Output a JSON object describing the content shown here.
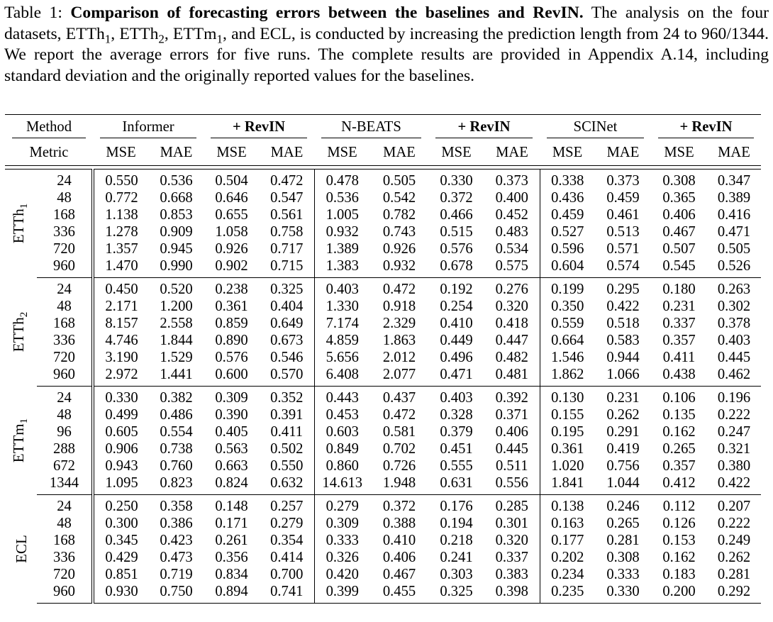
{
  "caption": {
    "label": "Table 1: ",
    "bold": "Comparison of forecasting errors between the baselines and RevIN.",
    "text_a": " The analysis on the four datasets, ETTh",
    "sub1": "1",
    "text_b": ", ETTh",
    "sub2": "2",
    "text_c": ", ETTm",
    "sub3": "1",
    "text_d": ", and ECL, is conducted by increasing the prediction length from 24 to 960/1344. We report the average errors for five runs. The complete results are provided in Appendix A.14, including standard deviation and the originally reported values for the baselines."
  },
  "table": {
    "method_label": "Method",
    "metric_label": "Metric",
    "methods": [
      "Informer",
      "+ RevIN",
      "N-BEATS",
      "+ RevIN",
      "SCINet",
      "+ RevIN"
    ],
    "metrics": [
      "MSE",
      "MAE"
    ],
    "groups": [
      {
        "dataset": "ETTh",
        "dataset_sub": "1",
        "rows": [
          {
            "len": "24",
            "vals": [
              "0.550",
              "0.536",
              "0.504",
              "0.472",
              "0.478",
              "0.505",
              "0.330",
              "0.373",
              "0.338",
              "0.373",
              "0.308",
              "0.347"
            ]
          },
          {
            "len": "48",
            "vals": [
              "0.772",
              "0.668",
              "0.646",
              "0.547",
              "0.536",
              "0.542",
              "0.372",
              "0.400",
              "0.436",
              "0.459",
              "0.365",
              "0.389"
            ]
          },
          {
            "len": "168",
            "vals": [
              "1.138",
              "0.853",
              "0.655",
              "0.561",
              "1.005",
              "0.782",
              "0.466",
              "0.452",
              "0.459",
              "0.461",
              "0.406",
              "0.416"
            ]
          },
          {
            "len": "336",
            "vals": [
              "1.278",
              "0.909",
              "1.058",
              "0.758",
              "0.932",
              "0.743",
              "0.515",
              "0.483",
              "0.527",
              "0.513",
              "0.467",
              "0.471"
            ]
          },
          {
            "len": "720",
            "vals": [
              "1.357",
              "0.945",
              "0.926",
              "0.717",
              "1.389",
              "0.926",
              "0.576",
              "0.534",
              "0.596",
              "0.571",
              "0.507",
              "0.505"
            ]
          },
          {
            "len": "960",
            "vals": [
              "1.470",
              "0.990",
              "0.902",
              "0.715",
              "1.383",
              "0.932",
              "0.678",
              "0.575",
              "0.604",
              "0.574",
              "0.545",
              "0.526"
            ]
          }
        ]
      },
      {
        "dataset": "ETTh",
        "dataset_sub": "2",
        "rows": [
          {
            "len": "24",
            "vals": [
              "0.450",
              "0.520",
              "0.238",
              "0.325",
              "0.403",
              "0.472",
              "0.192",
              "0.276",
              "0.199",
              "0.295",
              "0.180",
              "0.263"
            ]
          },
          {
            "len": "48",
            "vals": [
              "2.171",
              "1.200",
              "0.361",
              "0.404",
              "1.330",
              "0.918",
              "0.254",
              "0.320",
              "0.350",
              "0.422",
              "0.231",
              "0.302"
            ]
          },
          {
            "len": "168",
            "vals": [
              "8.157",
              "2.558",
              "0.859",
              "0.649",
              "7.174",
              "2.329",
              "0.410",
              "0.418",
              "0.559",
              "0.518",
              "0.337",
              "0.378"
            ]
          },
          {
            "len": "336",
            "vals": [
              "4.746",
              "1.844",
              "0.890",
              "0.673",
              "4.859",
              "1.863",
              "0.449",
              "0.447",
              "0.664",
              "0.583",
              "0.357",
              "0.403"
            ]
          },
          {
            "len": "720",
            "vals": [
              "3.190",
              "1.529",
              "0.576",
              "0.546",
              "5.656",
              "2.012",
              "0.496",
              "0.482",
              "1.546",
              "0.944",
              "0.411",
              "0.445"
            ]
          },
          {
            "len": "960",
            "vals": [
              "2.972",
              "1.441",
              "0.600",
              "0.570",
              "6.408",
              "2.077",
              "0.471",
              "0.481",
              "1.862",
              "1.066",
              "0.438",
              "0.462"
            ]
          }
        ]
      },
      {
        "dataset": "ETTm",
        "dataset_sub": "1",
        "rows": [
          {
            "len": "24",
            "vals": [
              "0.330",
              "0.382",
              "0.309",
              "0.352",
              "0.443",
              "0.437",
              "0.403",
              "0.392",
              "0.130",
              "0.231",
              "0.106",
              "0.196"
            ]
          },
          {
            "len": "48",
            "vals": [
              "0.499",
              "0.486",
              "0.390",
              "0.391",
              "0.453",
              "0.472",
              "0.328",
              "0.371",
              "0.155",
              "0.262",
              "0.135",
              "0.222"
            ]
          },
          {
            "len": "96",
            "vals": [
              "0.605",
              "0.554",
              "0.405",
              "0.411",
              "0.603",
              "0.581",
              "0.379",
              "0.406",
              "0.195",
              "0.291",
              "0.162",
              "0.247"
            ]
          },
          {
            "len": "288",
            "vals": [
              "0.906",
              "0.738",
              "0.563",
              "0.502",
              "0.849",
              "0.702",
              "0.451",
              "0.445",
              "0.361",
              "0.419",
              "0.265",
              "0.321"
            ]
          },
          {
            "len": "672",
            "vals": [
              "0.943",
              "0.760",
              "0.663",
              "0.550",
              "0.860",
              "0.726",
              "0.555",
              "0.511",
              "1.020",
              "0.756",
              "0.357",
              "0.380"
            ]
          },
          {
            "len": "1344",
            "vals": [
              "1.095",
              "0.823",
              "0.824",
              "0.632",
              "14.613",
              "1.948",
              "0.631",
              "0.556",
              "1.841",
              "1.044",
              "0.412",
              "0.422"
            ]
          }
        ]
      },
      {
        "dataset": "ECL",
        "dataset_sub": "",
        "rows": [
          {
            "len": "24",
            "vals": [
              "0.250",
              "0.358",
              "0.148",
              "0.257",
              "0.279",
              "0.372",
              "0.176",
              "0.285",
              "0.138",
              "0.246",
              "0.112",
              "0.207"
            ]
          },
          {
            "len": "48",
            "vals": [
              "0.300",
              "0.386",
              "0.171",
              "0.279",
              "0.309",
              "0.388",
              "0.194",
              "0.301",
              "0.163",
              "0.265",
              "0.126",
              "0.222"
            ]
          },
          {
            "len": "168",
            "vals": [
              "0.345",
              "0.423",
              "0.261",
              "0.354",
              "0.333",
              "0.410",
              "0.218",
              "0.320",
              "0.177",
              "0.281",
              "0.153",
              "0.249"
            ]
          },
          {
            "len": "336",
            "vals": [
              "0.429",
              "0.473",
              "0.356",
              "0.414",
              "0.326",
              "0.406",
              "0.241",
              "0.337",
              "0.202",
              "0.308",
              "0.162",
              "0.262"
            ]
          },
          {
            "len": "720",
            "vals": [
              "0.851",
              "0.719",
              "0.834",
              "0.700",
              "0.420",
              "0.467",
              "0.303",
              "0.383",
              "0.234",
              "0.333",
              "0.183",
              "0.281"
            ]
          },
          {
            "len": "960",
            "vals": [
              "0.930",
              "0.750",
              "0.894",
              "0.741",
              "0.399",
              "0.455",
              "0.325",
              "0.398",
              "0.235",
              "0.330",
              "0.200",
              "0.292"
            ]
          }
        ]
      }
    ]
  }
}
